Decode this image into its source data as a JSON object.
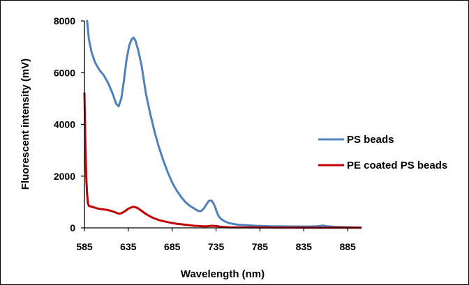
{
  "chart_data": {
    "type": "line",
    "title": "",
    "xlabel": "Wavelength (nm)",
    "ylabel": "Fluorescent intensity (mV)",
    "xlim": [
      585,
      900
    ],
    "ylim": [
      0,
      8000
    ],
    "xticks": [
      585,
      635,
      685,
      735,
      785,
      835,
      885
    ],
    "yticks": [
      0,
      2000,
      4000,
      6000,
      8000
    ],
    "grid": false,
    "legend_position": "right",
    "colors": {
      "PS beads": "#4f81bd",
      "PE coated PS beads": "#c00000"
    },
    "series": [
      {
        "name": "PS beads",
        "x": [
          588,
          590,
          593,
          597,
          602,
          607,
          612,
          617,
          621,
          624,
          627,
          630,
          633,
          636,
          639,
          641,
          643,
          646,
          650,
          655,
          660,
          665,
          670,
          675,
          680,
          685,
          690,
          695,
          700,
          705,
          710,
          715,
          718,
          721,
          724,
          727,
          730,
          732,
          734,
          736,
          738,
          741,
          745,
          750,
          760,
          770,
          780,
          790,
          800,
          820,
          840,
          850,
          857,
          862,
          870,
          880,
          890,
          900
        ],
        "y": [
          8000,
          7300,
          6800,
          6400,
          6100,
          5900,
          5600,
          5200,
          4800,
          4700,
          5000,
          5700,
          6500,
          7050,
          7300,
          7350,
          7250,
          6900,
          6300,
          5200,
          4400,
          3700,
          3100,
          2600,
          2150,
          1750,
          1450,
          1200,
          1000,
          850,
          750,
          650,
          650,
          750,
          900,
          1050,
          1050,
          950,
          800,
          600,
          450,
          330,
          250,
          180,
          120,
          100,
          80,
          70,
          60,
          55,
          50,
          60,
          90,
          60,
          40,
          30,
          20,
          10
        ]
      },
      {
        "name": "PE coated PS beads",
        "x": [
          585,
          586,
          587,
          588,
          589,
          590,
          595,
          600,
          605,
          610,
          615,
          620,
          623,
          626,
          630,
          635,
          640,
          643,
          646,
          650,
          655,
          660,
          665,
          670,
          680,
          690,
          700,
          710,
          720,
          725,
          730,
          735,
          740,
          750,
          800,
          850,
          900
        ],
        "y": [
          5200,
          3300,
          2000,
          1300,
          950,
          850,
          800,
          750,
          720,
          700,
          660,
          600,
          560,
          550,
          620,
          740,
          810,
          800,
          760,
          660,
          540,
          440,
          360,
          300,
          220,
          160,
          120,
          80,
          60,
          60,
          80,
          70,
          40,
          20,
          10,
          5,
          5
        ]
      }
    ]
  }
}
